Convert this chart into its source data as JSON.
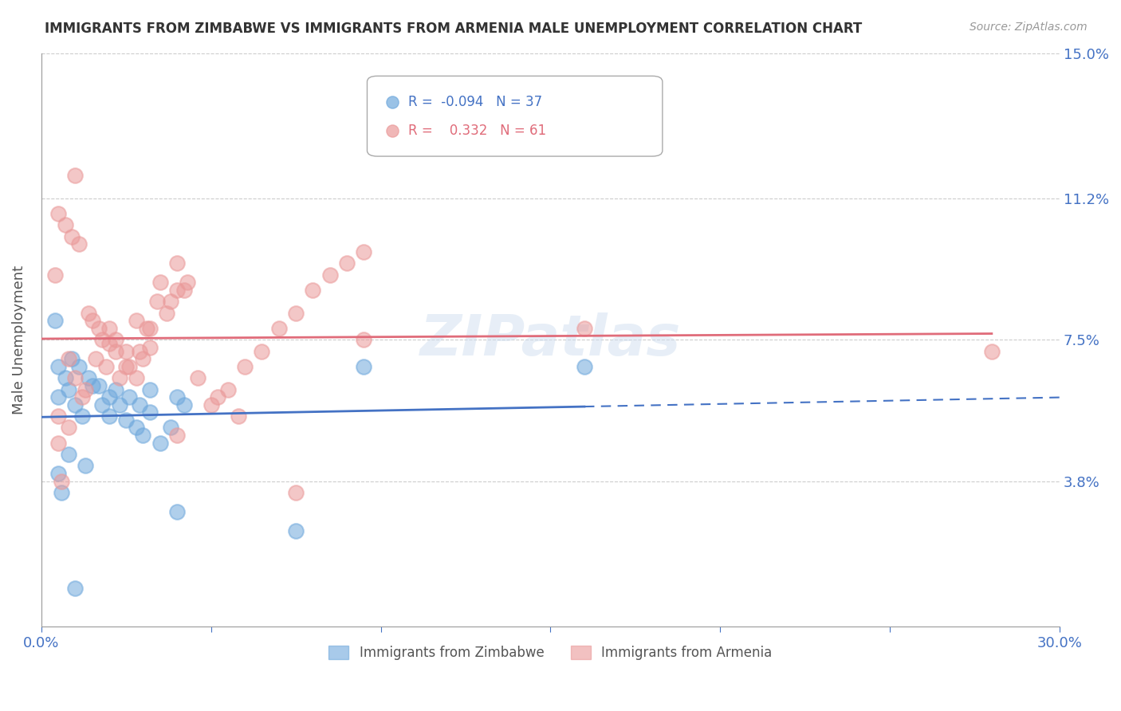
{
  "title": "IMMIGRANTS FROM ZIMBABWE VS IMMIGRANTS FROM ARMENIA MALE UNEMPLOYMENT CORRELATION CHART",
  "source": "Source: ZipAtlas.com",
  "xlabel": "",
  "ylabel": "Male Unemployment",
  "xlim": [
    0.0,
    0.3
  ],
  "ylim": [
    0.0,
    0.15
  ],
  "yticks": [
    0.038,
    0.075,
    0.112,
    0.15
  ],
  "ytick_labels": [
    "3.8%",
    "7.5%",
    "11.2%",
    "15.0%"
  ],
  "xticks": [
    0.0,
    0.05,
    0.1,
    0.15,
    0.2,
    0.25,
    0.3
  ],
  "xtick_labels": [
    "0.0%",
    "",
    "",
    "",
    "",
    "",
    "30.0%"
  ],
  "legend_r1": "R = -0.094",
  "legend_n1": "N = 37",
  "legend_r2": "R =  0.332",
  "legend_n2": "N = 61",
  "color_zimbabwe": "#6fa8dc",
  "color_armenia": "#ea9999",
  "color_axis_labels": "#6fa8dc",
  "watermark": "ZIPatlas",
  "zimbabwe_x": [
    0.005,
    0.008,
    0.01,
    0.012,
    0.015,
    0.018,
    0.02,
    0.022,
    0.025,
    0.028,
    0.03,
    0.032,
    0.035,
    0.038,
    0.04,
    0.042,
    0.005,
    0.007,
    0.009,
    0.011,
    0.014,
    0.017,
    0.02,
    0.023,
    0.026,
    0.029,
    0.032,
    0.005,
    0.006,
    0.008,
    0.095,
    0.16,
    0.04,
    0.075,
    0.01,
    0.013,
    0.004
  ],
  "zimbabwe_y": [
    0.06,
    0.062,
    0.058,
    0.055,
    0.063,
    0.058,
    0.06,
    0.062,
    0.054,
    0.052,
    0.05,
    0.056,
    0.048,
    0.052,
    0.06,
    0.058,
    0.068,
    0.065,
    0.07,
    0.068,
    0.065,
    0.063,
    0.055,
    0.058,
    0.06,
    0.058,
    0.062,
    0.04,
    0.035,
    0.045,
    0.068,
    0.068,
    0.03,
    0.025,
    0.01,
    0.042,
    0.08
  ],
  "armenia_x": [
    0.005,
    0.008,
    0.01,
    0.012,
    0.015,
    0.018,
    0.02,
    0.022,
    0.025,
    0.028,
    0.03,
    0.032,
    0.035,
    0.038,
    0.04,
    0.042,
    0.005,
    0.007,
    0.009,
    0.011,
    0.014,
    0.017,
    0.02,
    0.023,
    0.026,
    0.029,
    0.032,
    0.005,
    0.006,
    0.008,
    0.095,
    0.16,
    0.04,
    0.075,
    0.01,
    0.013,
    0.004,
    0.046,
    0.052,
    0.058,
    0.016,
    0.019,
    0.022,
    0.025,
    0.028,
    0.031,
    0.034,
    0.037,
    0.04,
    0.043,
    0.05,
    0.055,
    0.06,
    0.065,
    0.07,
    0.075,
    0.08,
    0.085,
    0.09,
    0.095,
    0.28
  ],
  "armenia_y": [
    0.055,
    0.07,
    0.065,
    0.06,
    0.08,
    0.075,
    0.078,
    0.072,
    0.068,
    0.065,
    0.07,
    0.073,
    0.09,
    0.085,
    0.095,
    0.088,
    0.108,
    0.105,
    0.102,
    0.1,
    0.082,
    0.078,
    0.074,
    0.065,
    0.068,
    0.072,
    0.078,
    0.048,
    0.038,
    0.052,
    0.075,
    0.078,
    0.05,
    0.035,
    0.118,
    0.062,
    0.092,
    0.065,
    0.06,
    0.055,
    0.07,
    0.068,
    0.075,
    0.072,
    0.08,
    0.078,
    0.085,
    0.082,
    0.088,
    0.09,
    0.058,
    0.062,
    0.068,
    0.072,
    0.078,
    0.082,
    0.088,
    0.092,
    0.095,
    0.098,
    0.072
  ]
}
